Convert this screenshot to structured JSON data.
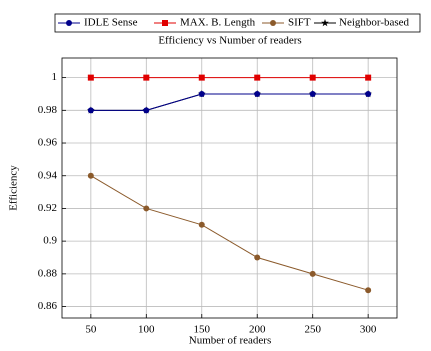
{
  "chart_data": {
    "type": "line",
    "title": "Efficiency vs Number of readers",
    "x_label": "Number of readers",
    "y_label": "Efficiency",
    "x": [
      50,
      100,
      150,
      200,
      250,
      300
    ],
    "series": [
      {
        "name": "IDLE Sense",
        "color": "#00008b",
        "marker": "circle",
        "values": [
          0.98,
          0.98,
          0.99,
          0.99,
          0.99,
          0.99
        ]
      },
      {
        "name": "MAX. B. Length",
        "color": "#e00000",
        "marker": "square",
        "values": [
          1,
          1,
          1,
          1,
          1,
          1
        ]
      },
      {
        "name": "SIFT",
        "color": "#8b5a2b",
        "marker": "circle",
        "values": [
          0.94,
          0.92,
          0.91,
          0.89,
          0.88,
          0.87
        ]
      },
      {
        "name": "Neighbor-based",
        "color": "#000000",
        "marker": "star",
        "values": [
          0.98,
          0.98,
          0.99,
          0.99,
          0.99,
          0.99
        ]
      }
    ],
    "xlim": [
      24,
      326
    ],
    "xticks": [
      50,
      100,
      150,
      200,
      250,
      300
    ],
    "ylim": [
      0.853,
      1.012
    ],
    "yticks": [
      0.86,
      0.88,
      0.9,
      0.92,
      0.94,
      0.96,
      0.98,
      1
    ],
    "grid": true,
    "legend_position": "top"
  }
}
